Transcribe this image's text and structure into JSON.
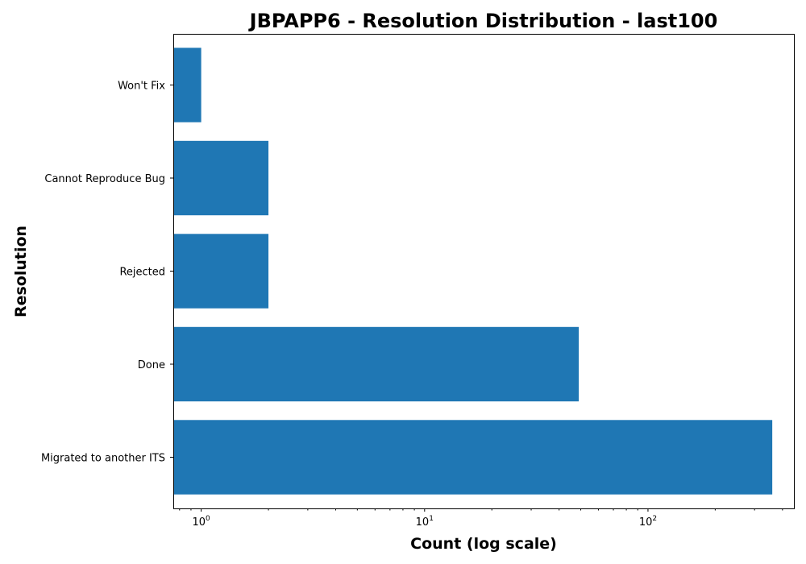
{
  "chart_data": {
    "type": "bar",
    "orientation": "horizontal",
    "title": "JBPAPP6 - Resolution Distribution - last100",
    "xlabel": "Count (log scale)",
    "ylabel": "Resolution",
    "xscale": "log",
    "xlim": [
      0.75,
      450
    ],
    "categories": [
      "Migrated to another ITS",
      "Done",
      "Rejected",
      "Cannot Reproduce Bug",
      "Won't Fix"
    ],
    "values": [
      360,
      49,
      2,
      2,
      1
    ],
    "bar_color": "#1f77b4",
    "grid": false,
    "legend": "none",
    "x_ticks": [
      {
        "value": 1,
        "base": "10",
        "exp": "0"
      },
      {
        "value": 10,
        "base": "10",
        "exp": "1"
      },
      {
        "value": 100,
        "base": "10",
        "exp": "2"
      }
    ]
  }
}
